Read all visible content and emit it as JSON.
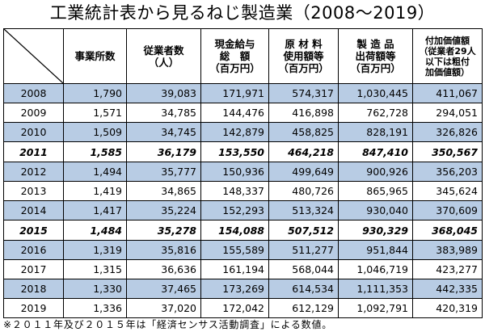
{
  "title": "工業統計表から見るねじ製造業（2008～2019）",
  "headers": [
    "",
    "事業所数",
    "従業者数\n（人）",
    "現金給与\n総　額\n（百万円）",
    "原 材 料\n使用額等\n（百万円）",
    "製 造 品\n出荷額等\n（百万円）",
    "付加価値額\n（従業者29人\n以下は粗付\n加価値額）"
  ],
  "rows": [
    {
      "year": "2008",
      "cells": [
        "1,790",
        "39,083",
        "171,971",
        "574,317",
        "1,030,445",
        "411,067"
      ],
      "style": "blue"
    },
    {
      "year": "2009",
      "cells": [
        "1,571",
        "34,785",
        "144,476",
        "416,898",
        "762,728",
        "294,051"
      ],
      "style": "white"
    },
    {
      "year": "2010",
      "cells": [
        "1,509",
        "34,745",
        "142,879",
        "458,825",
        "828,191",
        "326,826"
      ],
      "style": "blue"
    },
    {
      "year": "2011",
      "cells": [
        "1,585",
        "36,179",
        "153,550",
        "464,218",
        "847,410",
        "350,567"
      ],
      "style": "bold"
    },
    {
      "year": "2012",
      "cells": [
        "1,494",
        "35,777",
        "150,936",
        "499,649",
        "900,926",
        "356,203"
      ],
      "style": "blue"
    },
    {
      "year": "2013",
      "cells": [
        "1,419",
        "34,865",
        "148,337",
        "480,726",
        "865,965",
        "345,624"
      ],
      "style": "white"
    },
    {
      "year": "2014",
      "cells": [
        "1,417",
        "35,224",
        "152,293",
        "513,324",
        "930,040",
        "370,609"
      ],
      "style": "blue"
    },
    {
      "year": "2015",
      "cells": [
        "1,484",
        "35,278",
        "154,088",
        "507,512",
        "930,329",
        "368,045"
      ],
      "style": "bold"
    },
    {
      "year": "2016",
      "cells": [
        "1,319",
        "35,816",
        "155,589",
        "511,277",
        "951,844",
        "383,989"
      ],
      "style": "blue"
    },
    {
      "year": "2017",
      "cells": [
        "1,315",
        "36,636",
        "161,194",
        "568,044",
        "1,046,719",
        "423,277"
      ],
      "style": "white"
    },
    {
      "year": "2018",
      "cells": [
        "1,330",
        "37,465",
        "173,269",
        "614,534",
        "1,111,353",
        "442,335"
      ],
      "style": "blue"
    },
    {
      "year": "2019",
      "cells": [
        "1,336",
        "37,020",
        "172,042",
        "612,129",
        "1,092,791",
        "420,319"
      ],
      "style": "white"
    }
  ],
  "note": "※２０１１年及び２０１５年は「経済センサス活動調査」による数値。",
  "colors": {
    "row_highlight": "#b8cce4",
    "border": "#000000"
  }
}
